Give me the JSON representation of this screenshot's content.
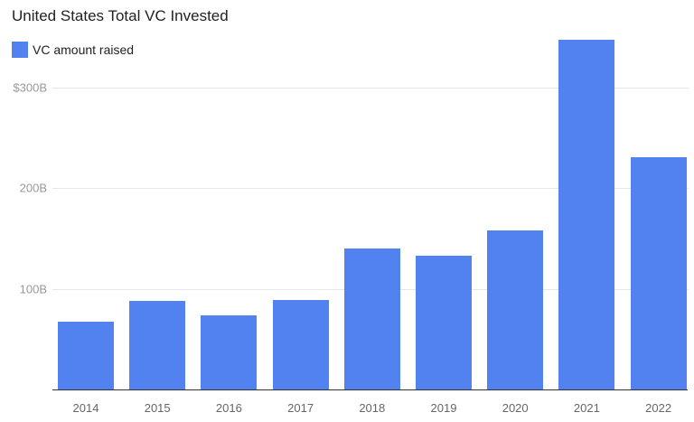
{
  "title": "United States Total VC Invested",
  "legend": {
    "label": "VC amount raised",
    "color": "#5282f0"
  },
  "colors": {
    "bar": "#5282f0",
    "grid": "#e6e6e6",
    "axis": "#333333"
  },
  "y_ticks": [
    {
      "value": 100,
      "label": "100B"
    },
    {
      "value": 200,
      "label": "200B"
    },
    {
      "value": 300,
      "label": "$300B"
    }
  ],
  "chart_data": {
    "type": "bar",
    "title": "United States Total VC Invested",
    "xlabel": "",
    "ylabel": "",
    "categories": [
      "2014",
      "2015",
      "2016",
      "2017",
      "2018",
      "2019",
      "2020",
      "2021",
      "2022"
    ],
    "series": [
      {
        "name": "VC amount raised",
        "color": "#5282f0",
        "values": [
          67,
          88,
          74,
          89,
          140,
          133,
          158,
          347,
          231
        ]
      }
    ],
    "units": "USD billions",
    "ylim": [
      0,
      350
    ],
    "yticks": [
      "100B",
      "200B",
      "$300B"
    ],
    "grid": true,
    "legend_position": "top-left"
  }
}
